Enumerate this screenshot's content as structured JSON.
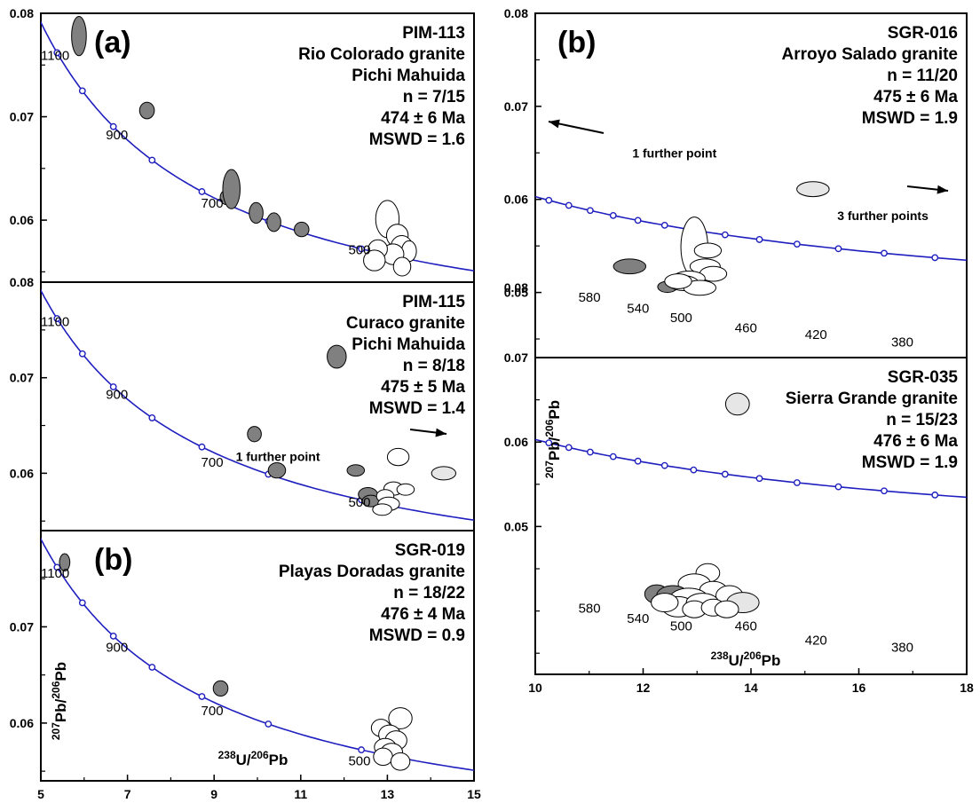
{
  "chart_data": [
    {
      "type": "scatter",
      "panel_label": "(a)",
      "sample": "PIM-113",
      "lines": [
        "PIM-113",
        "Rio Colorado granite",
        "Pichi Mahuida",
        "n = 7/15",
        "474 ± 6 Ma",
        "MSWD = 1.6"
      ],
      "xlim": [
        5,
        15
      ],
      "ylim": [
        0.054,
        0.08
      ],
      "y_ticks": [
        {
          "v": 0.08,
          "label": "0.08"
        },
        {
          "v": 0.07,
          "label": "0.07"
        },
        {
          "v": 0.06,
          "label": "0.06"
        }
      ],
      "age_labels": [
        {
          "x": 5.0,
          "y": 0.0755,
          "text": "1100"
        },
        {
          "x": 6.5,
          "y": 0.0678,
          "text": "900"
        },
        {
          "x": 8.7,
          "y": 0.0612,
          "text": "700"
        },
        {
          "x": 12.1,
          "y": 0.0567,
          "text": "500"
        }
      ],
      "curve_ages": [
        1100,
        1000,
        900,
        800,
        700,
        600,
        500
      ],
      "ellipses": [
        {
          "x": 5.88,
          "y": 0.0778,
          "rx": 0.17,
          "ry": 0.0019,
          "fill": "#808080"
        },
        {
          "x": 7.45,
          "y": 0.0706,
          "rx": 0.17,
          "ry": 0.0008,
          "fill": "#808080"
        },
        {
          "x": 9.28,
          "y": 0.0622,
          "rx": 0.14,
          "ry": 0.0007,
          "fill": "#808080"
        },
        {
          "x": 9.4,
          "y": 0.063,
          "rx": 0.2,
          "ry": 0.0019,
          "fill": "#808080"
        },
        {
          "x": 9.97,
          "y": 0.0607,
          "rx": 0.16,
          "ry": 0.001,
          "fill": "#808080"
        },
        {
          "x": 10.38,
          "y": 0.0598,
          "rx": 0.16,
          "ry": 0.0009,
          "fill": "#808080"
        },
        {
          "x": 11.02,
          "y": 0.0591,
          "rx": 0.17,
          "ry": 0.0007,
          "fill": "#808080"
        },
        {
          "x": 13.0,
          "y": 0.0601,
          "rx": 0.27,
          "ry": 0.0018,
          "fill": "#ffffff"
        },
        {
          "x": 13.23,
          "y": 0.0585,
          "rx": 0.25,
          "ry": 0.0011,
          "fill": "#ffffff"
        },
        {
          "x": 13.33,
          "y": 0.0574,
          "rx": 0.25,
          "ry": 0.0011,
          "fill": "#ffffff"
        },
        {
          "x": 13.5,
          "y": 0.057,
          "rx": 0.17,
          "ry": 0.001,
          "fill": "#ffffff"
        },
        {
          "x": 13.13,
          "y": 0.0567,
          "rx": 0.25,
          "ry": 0.001,
          "fill": "#ffffff"
        },
        {
          "x": 12.78,
          "y": 0.0572,
          "rx": 0.22,
          "ry": 0.0009,
          "fill": "#ffffff"
        },
        {
          "x": 12.7,
          "y": 0.0561,
          "rx": 0.25,
          "ry": 0.001,
          "fill": "#ffffff"
        },
        {
          "x": 13.34,
          "y": 0.0555,
          "rx": 0.2,
          "ry": 0.0009,
          "fill": "#ffffff"
        }
      ]
    },
    {
      "type": "scatter",
      "panel_label": "",
      "sample": "PIM-115",
      "lines": [
        "PIM-115",
        "Curaco granite",
        "Pichi Mahuida",
        "n = 8/18",
        "475 ± 5 Ma",
        "MSWD = 1.4"
      ],
      "note": {
        "text": "1 further point",
        "x": 9.5,
        "y": 0.0613
      },
      "xlim": [
        5,
        15
      ],
      "ylim": [
        0.054,
        0.08
      ],
      "y_ticks": [
        {
          "v": 0.08,
          "label": "0.08"
        },
        {
          "v": 0.07,
          "label": "0.07"
        },
        {
          "v": 0.06,
          "label": "0.06"
        }
      ],
      "age_labels": [
        {
          "x": 5.0,
          "y": 0.0754,
          "text": "1100"
        },
        {
          "x": 6.5,
          "y": 0.0678,
          "text": "900"
        },
        {
          "x": 8.7,
          "y": 0.0607,
          "text": "700"
        },
        {
          "x": 12.1,
          "y": 0.0565,
          "text": "500"
        }
      ],
      "curve_ages": [
        1100,
        1000,
        900,
        800,
        700,
        600,
        500
      ],
      "ellipses": [
        {
          "x": 11.83,
          "y": 0.0722,
          "rx": 0.22,
          "ry": 0.0012,
          "fill": "#808080"
        },
        {
          "x": 9.93,
          "y": 0.0641,
          "rx": 0.16,
          "ry": 0.0008,
          "fill": "#808080"
        },
        {
          "x": 10.45,
          "y": 0.0603,
          "rx": 0.2,
          "ry": 0.0008,
          "fill": "#808080"
        },
        {
          "x": 12.27,
          "y": 0.0603,
          "rx": 0.2,
          "ry": 0.0006,
          "fill": "#808080"
        },
        {
          "x": 12.55,
          "y": 0.0578,
          "rx": 0.22,
          "ry": 0.0007,
          "fill": "#808080"
        },
        {
          "x": 12.62,
          "y": 0.0571,
          "rx": 0.2,
          "ry": 0.0006,
          "fill": "#808080"
        },
        {
          "x": 13.25,
          "y": 0.0617,
          "rx": 0.25,
          "ry": 0.0009,
          "fill": "#ffffff"
        },
        {
          "x": 13.14,
          "y": 0.0584,
          "rx": 0.22,
          "ry": 0.0007,
          "fill": "#ffffff"
        },
        {
          "x": 13.42,
          "y": 0.0583,
          "rx": 0.2,
          "ry": 0.0006,
          "fill": "#ffffff"
        },
        {
          "x": 12.95,
          "y": 0.0576,
          "rx": 0.2,
          "ry": 0.0007,
          "fill": "#ffffff"
        },
        {
          "x": 13.03,
          "y": 0.0568,
          "rx": 0.25,
          "ry": 0.0007,
          "fill": "#ffffff"
        },
        {
          "x": 12.88,
          "y": 0.0562,
          "rx": 0.22,
          "ry": 0.0006,
          "fill": "#ffffff"
        },
        {
          "x": 14.3,
          "y": 0.06,
          "rx": 0.28,
          "ry": 0.0007,
          "fill": "#e6e6e6"
        }
      ]
    },
    {
      "type": "scatter",
      "panel_label": "(b)",
      "sample": "SGR-019",
      "lines": [
        "SGR-019",
        "Playas Doradas granite",
        "n = 18/22",
        "476 ± 4 Ma",
        "MSWD = 0.9"
      ],
      "xlabel": "238U/206Pb",
      "ylabel": "207Pb/206Pb",
      "xlim": [
        5,
        15
      ],
      "x_ticks": [
        {
          "v": 5,
          "label": "5"
        },
        {
          "v": 7,
          "label": "7"
        },
        {
          "v": 9,
          "label": "9"
        },
        {
          "v": 11,
          "label": "11"
        },
        {
          "v": 13,
          "label": "13"
        },
        {
          "v": 15,
          "label": "15"
        }
      ],
      "ylim": [
        0.054,
        0.08
      ],
      "y_ticks": [
        {
          "v": 0.07,
          "label": "0.07"
        },
        {
          "v": 0.06,
          "label": "0.06"
        }
      ],
      "age_labels": [
        {
          "x": 5.0,
          "y": 0.0751,
          "text": "1100"
        },
        {
          "x": 6.5,
          "y": 0.0674,
          "text": "900"
        },
        {
          "x": 8.7,
          "y": 0.0608,
          "text": "700"
        },
        {
          "x": 12.1,
          "y": 0.0556,
          "text": "500"
        }
      ],
      "curve_ages": [
        1100,
        1000,
        900,
        800,
        700,
        600,
        500
      ],
      "ellipses": [
        {
          "x": 5.55,
          "y": 0.0767,
          "rx": 0.12,
          "ry": 0.0009,
          "fill": "#808080"
        },
        {
          "x": 9.15,
          "y": 0.0636,
          "rx": 0.17,
          "ry": 0.0008,
          "fill": "#808080"
        },
        {
          "x": 13.3,
          "y": 0.0605,
          "rx": 0.27,
          "ry": 0.0011,
          "fill": "#ffffff"
        },
        {
          "x": 12.85,
          "y": 0.0595,
          "rx": 0.22,
          "ry": 0.0009,
          "fill": "#ffffff"
        },
        {
          "x": 13.05,
          "y": 0.0588,
          "rx": 0.25,
          "ry": 0.001,
          "fill": "#ffffff"
        },
        {
          "x": 13.2,
          "y": 0.0582,
          "rx": 0.25,
          "ry": 0.001,
          "fill": "#ffffff"
        },
        {
          "x": 12.95,
          "y": 0.0575,
          "rx": 0.25,
          "ry": 0.0009,
          "fill": "#ffffff"
        },
        {
          "x": 13.1,
          "y": 0.057,
          "rx": 0.25,
          "ry": 0.0009,
          "fill": "#ffffff"
        },
        {
          "x": 12.9,
          "y": 0.0565,
          "rx": 0.22,
          "ry": 0.0009,
          "fill": "#ffffff"
        },
        {
          "x": 13.3,
          "y": 0.056,
          "rx": 0.22,
          "ry": 0.0009,
          "fill": "#ffffff"
        }
      ]
    },
    {
      "type": "scatter",
      "panel_label": "(b)",
      "sample": "SGR-016",
      "lines": [
        "SGR-016",
        "Arroyo Salado granite",
        "n = 11/20",
        "475 ± 6 Ma",
        "MSWD = 1.9"
      ],
      "notes": [
        {
          "text": "1 further point",
          "x": 11.8,
          "y": 0.0645
        },
        {
          "text": "3 further points",
          "x": 15.6,
          "y": 0.0578
        }
      ],
      "xlim": [
        10,
        18
      ],
      "ylim": [
        0.043,
        0.08
      ],
      "y_ticks": [
        {
          "v": 0.08,
          "label": "0.08"
        },
        {
          "v": 0.07,
          "label": "0.07"
        },
        {
          "v": 0.06,
          "label": "0.06"
        },
        {
          "v": 0.05,
          "label": "0.05"
        }
      ],
      "extra_y_label": "0.08",
      "age_labels": [
        {
          "x": 10.8,
          "y": 0.049,
          "text": "580"
        },
        {
          "x": 11.7,
          "y": 0.0478,
          "text": "540"
        },
        {
          "x": 12.5,
          "y": 0.0468,
          "text": "500"
        },
        {
          "x": 13.7,
          "y": 0.0457,
          "text": "460"
        },
        {
          "x": 15.0,
          "y": 0.045,
          "text": "420"
        },
        {
          "x": 16.6,
          "y": 0.0442,
          "text": "380"
        }
      ],
      "curve_ages": [
        600,
        580,
        560,
        540,
        520,
        500,
        480,
        460,
        440,
        420,
        400,
        380,
        360
      ],
      "ellipses": [
        {
          "x": 11.75,
          "y": 0.0528,
          "rx": 0.3,
          "ry": 0.0008,
          "fill": "#808080"
        },
        {
          "x": 12.45,
          "y": 0.0506,
          "rx": 0.18,
          "ry": 0.0006,
          "fill": "#808080"
        },
        {
          "x": 12.95,
          "y": 0.0549,
          "rx": 0.25,
          "ry": 0.0032,
          "fill": "#ffffff"
        },
        {
          "x": 13.2,
          "y": 0.0545,
          "rx": 0.25,
          "ry": 0.0008,
          "fill": "#ffffff"
        },
        {
          "x": 13.15,
          "y": 0.0528,
          "rx": 0.28,
          "ry": 0.0008,
          "fill": "#ffffff"
        },
        {
          "x": 13.3,
          "y": 0.052,
          "rx": 0.25,
          "ry": 0.0008,
          "fill": "#ffffff"
        },
        {
          "x": 12.85,
          "y": 0.0515,
          "rx": 0.3,
          "ry": 0.0008,
          "fill": "#ffffff"
        },
        {
          "x": 12.75,
          "y": 0.051,
          "rx": 0.28,
          "ry": 0.0008,
          "fill": "#ffffff"
        },
        {
          "x": 13.05,
          "y": 0.0505,
          "rx": 0.3,
          "ry": 0.0008,
          "fill": "#ffffff"
        },
        {
          "x": 12.65,
          "y": 0.0512,
          "rx": 0.25,
          "ry": 0.0008,
          "fill": "#ffffff"
        },
        {
          "x": 15.15,
          "y": 0.0611,
          "rx": 0.3,
          "ry": 0.0008,
          "fill": "#e6e6e6"
        }
      ]
    },
    {
      "type": "scatter",
      "panel_label": "",
      "sample": "SGR-035",
      "lines": [
        "SGR-035",
        "Sierra Grande granite",
        "n = 15/23",
        "476 ± 6 Ma",
        "MSWD = 1.9"
      ],
      "xlabel": "238U/206Pb",
      "ylabel": "207Pb/206Pb",
      "xlim": [
        10,
        18
      ],
      "x_ticks": [
        {
          "v": 10,
          "label": "10"
        },
        {
          "v": 12,
          "label": "12"
        },
        {
          "v": 14,
          "label": "14"
        },
        {
          "v": 16,
          "label": "16"
        },
        {
          "v": 18,
          "label": "18"
        }
      ],
      "ylim": [
        0.0325,
        0.07
      ],
      "y_ticks": [
        {
          "v": 0.07,
          "label": "0.07"
        },
        {
          "v": 0.06,
          "label": "0.06"
        },
        {
          "v": 0.05,
          "label": "0.05"
        }
      ],
      "age_labels": [
        {
          "x": 10.8,
          "y": 0.0398,
          "text": "580"
        },
        {
          "x": 11.7,
          "y": 0.0386,
          "text": "540"
        },
        {
          "x": 12.5,
          "y": 0.0377,
          "text": "500"
        },
        {
          "x": 13.7,
          "y": 0.0377,
          "text": "460"
        },
        {
          "x": 15.0,
          "y": 0.036,
          "text": "420"
        },
        {
          "x": 16.6,
          "y": 0.0352,
          "text": "380"
        }
      ],
      "curve_ages": [
        600,
        580,
        560,
        540,
        520,
        500,
        480,
        460,
        440,
        420,
        400,
        380,
        360
      ],
      "ellipses": [
        {
          "x": 13.75,
          "y": 0.0645,
          "rx": 0.22,
          "ry": 0.0013,
          "fill": "#e6e6e6"
        },
        {
          "x": 13.2,
          "y": 0.0445,
          "rx": 0.22,
          "ry": 0.0011,
          "fill": "#ffffff"
        },
        {
          "x": 12.95,
          "y": 0.0432,
          "rx": 0.3,
          "ry": 0.0012,
          "fill": "#ffffff"
        },
        {
          "x": 13.3,
          "y": 0.0425,
          "rx": 0.25,
          "ry": 0.001,
          "fill": "#ffffff"
        },
        {
          "x": 12.25,
          "y": 0.042,
          "rx": 0.22,
          "ry": 0.0011,
          "fill": "#808080"
        },
        {
          "x": 12.55,
          "y": 0.0418,
          "rx": 0.3,
          "ry": 0.0012,
          "fill": "#808080"
        },
        {
          "x": 12.85,
          "y": 0.0415,
          "rx": 0.35,
          "ry": 0.0012,
          "fill": "#ffffff"
        },
        {
          "x": 13.6,
          "y": 0.0418,
          "rx": 0.25,
          "ry": 0.0012,
          "fill": "#ffffff"
        },
        {
          "x": 13.85,
          "y": 0.041,
          "rx": 0.3,
          "ry": 0.0012,
          "fill": "#e6e6e6"
        },
        {
          "x": 12.65,
          "y": 0.0405,
          "rx": 0.3,
          "ry": 0.0012,
          "fill": "#ffffff"
        },
        {
          "x": 13.1,
          "y": 0.041,
          "rx": 0.3,
          "ry": 0.0011,
          "fill": "#ffffff"
        },
        {
          "x": 12.4,
          "y": 0.041,
          "rx": 0.25,
          "ry": 0.0011,
          "fill": "#ffffff"
        },
        {
          "x": 12.95,
          "y": 0.0402,
          "rx": 0.22,
          "ry": 0.001,
          "fill": "#ffffff"
        },
        {
          "x": 13.3,
          "y": 0.0404,
          "rx": 0.22,
          "ry": 0.001,
          "fill": "#ffffff"
        },
        {
          "x": 13.55,
          "y": 0.0402,
          "rx": 0.22,
          "ry": 0.001,
          "fill": "#ffffff"
        }
      ]
    }
  ],
  "colors": {
    "concordia": "#1f1fbf",
    "dark_ellipse": "#808080",
    "light_ellipse": "#e6e6e6"
  }
}
